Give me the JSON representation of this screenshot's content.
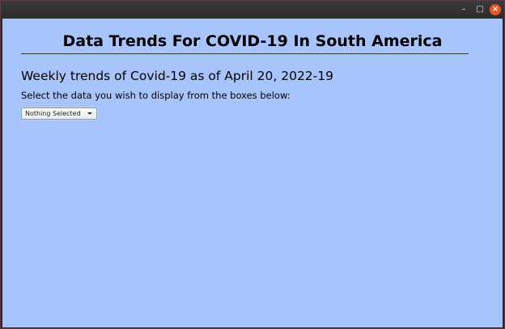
{
  "window": {
    "controls": {
      "minimize_glyph": "–",
      "maximize_glyph": "□",
      "close_glyph": "×",
      "close_color": "#e95420"
    }
  },
  "main": {
    "title": "Data Trends For COVID-19 In South America",
    "subtitle": "Weekly trends of Covid-19 as of April 20, 2022-19",
    "instructions": "Select the data you wish to display from the boxes below:",
    "background_color": "#a8c4fc"
  },
  "data_selector": {
    "selected_value": "Nothing Selected",
    "icon": "chevron-down-icon"
  }
}
